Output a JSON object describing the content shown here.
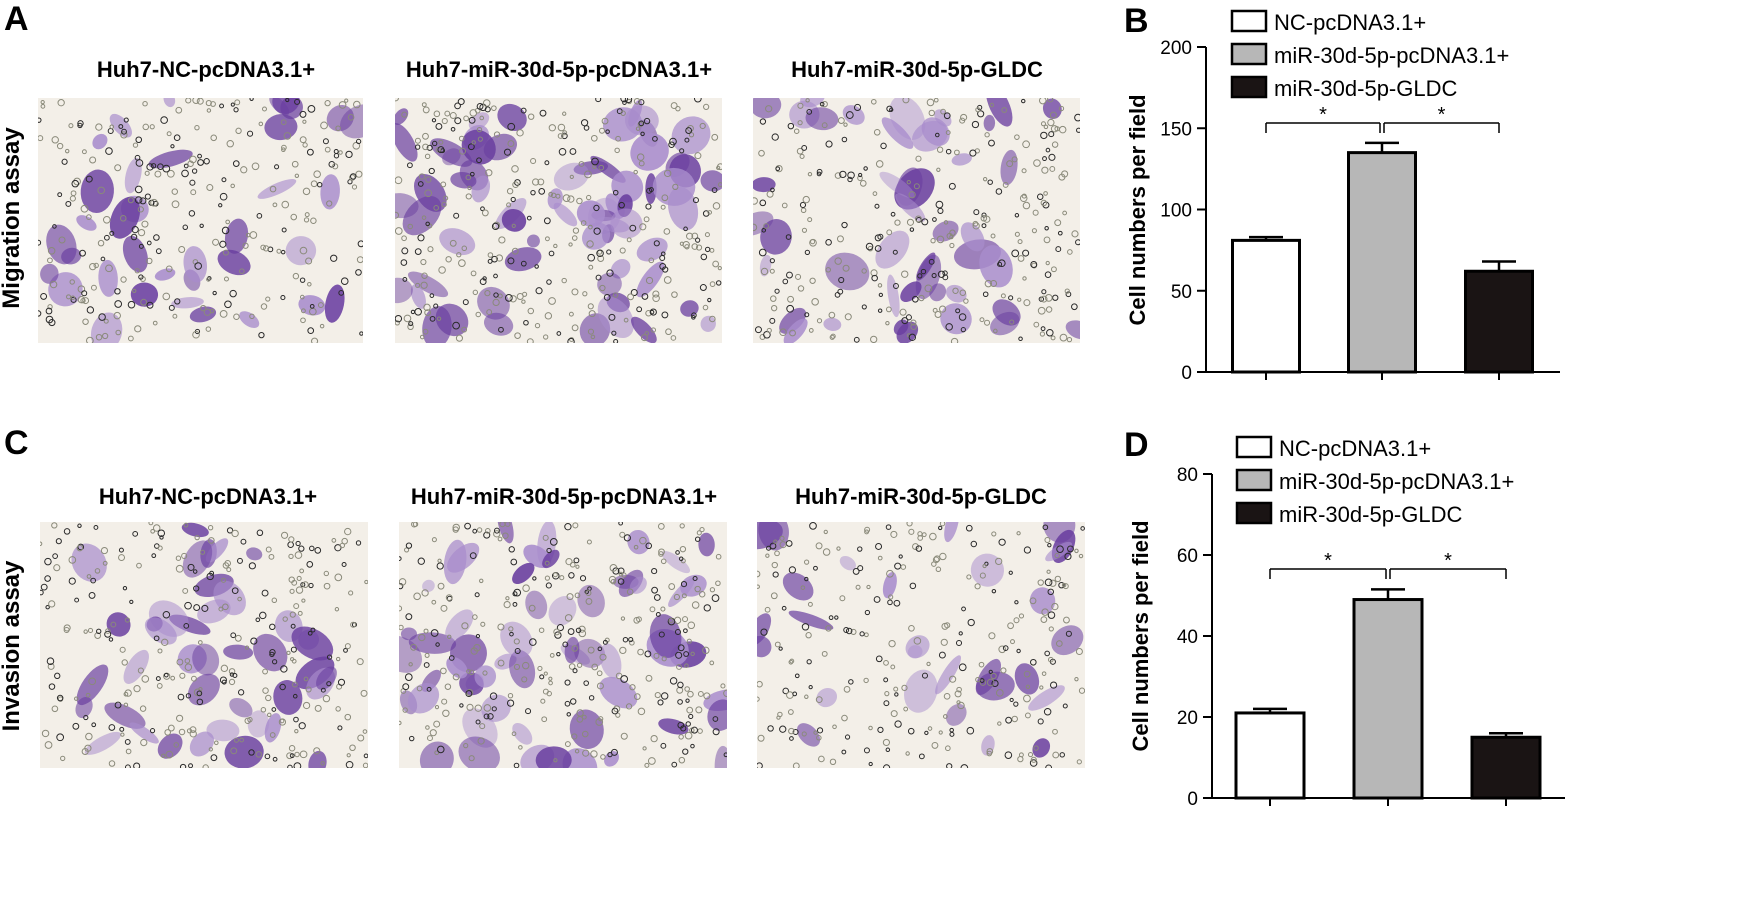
{
  "panels": {
    "A": "A",
    "B": "B",
    "C": "C",
    "D": "D"
  },
  "migration": {
    "row_label": "Migration assay",
    "titles": [
      "Huh7-NC-pcDNA3.1+",
      "Huh7-miR-30d-5p-pcDNA3.1+",
      "Huh7-miR-30d-5p-GLDC"
    ]
  },
  "invasion": {
    "row_label": "Invasion assay",
    "titles": [
      "Huh7-NC-pcDNA3.1+",
      "Huh7-miR-30d-5p-pcDNA3.1+",
      "Huh7-miR-30d-5p-GLDC"
    ]
  },
  "colors": {
    "nc": "#ffffff",
    "mir": "#b7b7b7",
    "gldc": "#1a1414",
    "stain": "#6a3fa0",
    "stain_light": "#a88ccc"
  },
  "chart_data": [
    {
      "type": "bar",
      "panel": "B",
      "categories": [
        "NC-pcDNA3.1+",
        "miR-30d-5p-pcDNA3.1+",
        "miR-30d-5p-GLDC"
      ],
      "series": [
        {
          "values": [
            81,
            135,
            62
          ],
          "errors": [
            2,
            6,
            6
          ]
        }
      ],
      "ylabel": "Cell numbers per field",
      "ylim": [
        0,
        200
      ],
      "yticks": [
        0,
        50,
        100,
        150,
        200
      ],
      "legend": [
        "NC-pcDNA3.1+",
        "miR-30d-5p-pcDNA3.1+",
        "miR-30d-5p-GLDC"
      ],
      "legend_position": "top",
      "significance": [
        {
          "from": 0,
          "to": 1,
          "label": "*"
        },
        {
          "from": 1,
          "to": 2,
          "label": "*"
        }
      ]
    },
    {
      "type": "bar",
      "panel": "D",
      "categories": [
        "NC-pcDNA3.1+",
        "miR-30d-5p-pcDNA3.1+",
        "miR-30d-5p-GLDC"
      ],
      "series": [
        {
          "values": [
            21,
            49,
            15
          ],
          "errors": [
            1,
            2.5,
            1
          ]
        }
      ],
      "ylabel": "Cell numbers per field",
      "ylim": [
        0,
        80
      ],
      "yticks": [
        0,
        20,
        40,
        60,
        80
      ],
      "legend": [
        "NC-pcDNA3.1+",
        "miR-30d-5p-pcDNA3.1+",
        "miR-30d-5p-GLDC"
      ],
      "legend_position": "top",
      "significance": [
        {
          "from": 0,
          "to": 1,
          "label": "*"
        },
        {
          "from": 1,
          "to": 2,
          "label": "*"
        }
      ]
    }
  ]
}
